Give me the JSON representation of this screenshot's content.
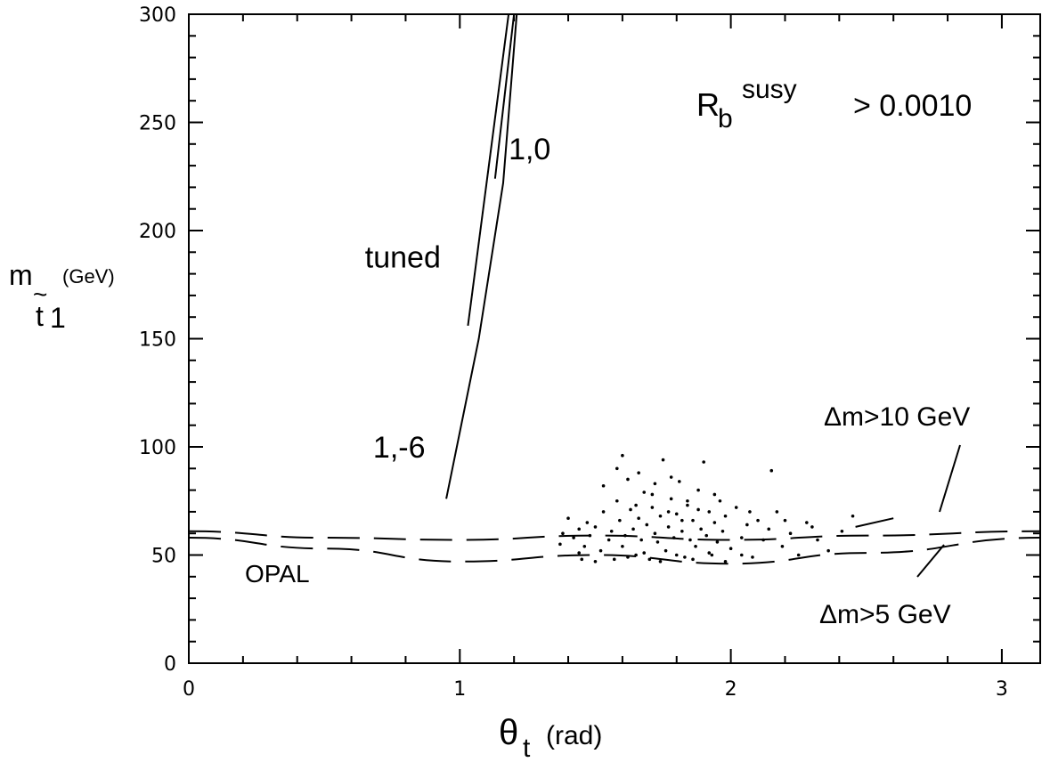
{
  "chart_data": {
    "type": "scatter",
    "title": "",
    "xlabel": {
      "main": "θ",
      "sub": "t",
      "unit": "(rad)"
    },
    "ylabel": {
      "main": "m",
      "tilde": "~",
      "sub": "t",
      "subsub": "1",
      "unit": "(GeV)"
    },
    "xlim": [
      0,
      3.1416
    ],
    "ylim": [
      0,
      300
    ],
    "x_ticks": [
      0,
      1,
      2,
      3
    ],
    "y_ticks": [
      0,
      50,
      100,
      150,
      200,
      250,
      300
    ],
    "x_tick_labels": [
      "0",
      "1",
      "2",
      "3"
    ],
    "y_tick_labels": [
      "0",
      "50",
      "100",
      "150",
      "200",
      "250",
      "300"
    ],
    "grid": false,
    "series": [
      {
        "kind": "line",
        "style": "solid",
        "points": [
          [
            0.95,
            76
          ],
          [
            1.07,
            150
          ],
          [
            1.16,
            222
          ],
          [
            1.21,
            300
          ]
        ]
      },
      {
        "kind": "line",
        "style": "solid",
        "points": [
          [
            1.03,
            156
          ],
          [
            1.18,
            300
          ]
        ]
      },
      {
        "kind": "line",
        "style": "solid",
        "points": [
          [
            1.13,
            224
          ],
          [
            1.2,
            300
          ]
        ]
      },
      {
        "kind": "line",
        "style": "dashed",
        "points": [
          [
            0,
            61
          ],
          [
            0.5,
            58
          ],
          [
            1.0,
            57
          ],
          [
            1.5,
            59
          ],
          [
            2.0,
            57
          ],
          [
            2.5,
            59
          ],
          [
            3.14,
            61
          ]
        ]
      },
      {
        "kind": "line",
        "style": "dashed",
        "points": [
          [
            0,
            58
          ],
          [
            0.5,
            53
          ],
          [
            1.0,
            47
          ],
          [
            1.5,
            50
          ],
          [
            2.0,
            46
          ],
          [
            2.5,
            51
          ],
          [
            3.14,
            58
          ]
        ]
      },
      {
        "kind": "line",
        "style": "solid",
        "points": [
          [
            2.46,
            63
          ],
          [
            2.6,
            67
          ]
        ]
      },
      {
        "kind": "scatter",
        "points": [
          [
            1.37,
            55
          ],
          [
            1.4,
            67
          ],
          [
            1.42,
            58
          ],
          [
            1.44,
            62
          ],
          [
            1.45,
            48
          ],
          [
            1.46,
            54
          ],
          [
            1.48,
            59
          ],
          [
            1.5,
            63
          ],
          [
            1.52,
            52
          ],
          [
            1.53,
            70
          ],
          [
            1.55,
            57
          ],
          [
            1.56,
            61
          ],
          [
            1.57,
            48
          ],
          [
            1.58,
            75
          ],
          [
            1.59,
            66
          ],
          [
            1.6,
            54
          ],
          [
            1.61,
            59
          ],
          [
            1.62,
            85
          ],
          [
            1.63,
            71
          ],
          [
            1.64,
            62
          ],
          [
            1.65,
            50
          ],
          [
            1.66,
            67
          ],
          [
            1.67,
            57
          ],
          [
            1.68,
            79
          ],
          [
            1.69,
            64
          ],
          [
            1.7,
            48
          ],
          [
            1.71,
            72
          ],
          [
            1.72,
            60
          ],
          [
            1.73,
            56
          ],
          [
            1.74,
            68
          ],
          [
            1.75,
            94
          ],
          [
            1.76,
            52
          ],
          [
            1.77,
            63
          ],
          [
            1.78,
            76
          ],
          [
            1.79,
            58
          ],
          [
            1.8,
            69
          ],
          [
            1.81,
            84
          ],
          [
            1.82,
            61
          ],
          [
            1.83,
            49
          ],
          [
            1.84,
            73
          ],
          [
            1.85,
            57
          ],
          [
            1.86,
            66
          ],
          [
            1.87,
            54
          ],
          [
            1.88,
            80
          ],
          [
            1.89,
            62
          ],
          [
            1.9,
            93
          ],
          [
            1.91,
            59
          ],
          [
            1.92,
            70
          ],
          [
            1.93,
            50
          ],
          [
            1.94,
            65
          ],
          [
            1.95,
            56
          ],
          [
            1.96,
            75
          ],
          [
            1.97,
            61
          ],
          [
            1.98,
            68
          ],
          [
            2.0,
            53
          ],
          [
            2.02,
            72
          ],
          [
            2.04,
            58
          ],
          [
            2.06,
            64
          ],
          [
            2.08,
            49
          ],
          [
            2.1,
            66
          ],
          [
            2.12,
            57
          ],
          [
            2.14,
            62
          ],
          [
            2.15,
            89
          ],
          [
            2.17,
            70
          ],
          [
            2.19,
            54
          ],
          [
            2.22,
            60
          ],
          [
            2.25,
            50
          ],
          [
            2.28,
            65
          ],
          [
            2.32,
            57
          ],
          [
            2.36,
            52
          ],
          [
            2.41,
            61
          ],
          [
            2.45,
            68
          ],
          [
            1.47,
            65
          ],
          [
            1.53,
            82
          ],
          [
            1.58,
            90
          ],
          [
            1.6,
            96
          ],
          [
            1.66,
            88
          ],
          [
            1.71,
            78
          ],
          [
            1.78,
            86
          ],
          [
            1.84,
            75
          ],
          [
            1.62,
            49
          ],
          [
            1.68,
            51
          ],
          [
            1.74,
            47
          ],
          [
            1.8,
            50
          ],
          [
            1.86,
            48
          ],
          [
            1.92,
            51
          ],
          [
            1.98,
            47
          ],
          [
            2.04,
            50
          ],
          [
            1.5,
            47
          ],
          [
            1.44,
            51
          ],
          [
            1.38,
            60
          ],
          [
            1.65,
            73
          ],
          [
            1.72,
            83
          ],
          [
            1.77,
            70
          ],
          [
            1.82,
            66
          ],
          [
            1.88,
            71
          ],
          [
            1.94,
            78
          ],
          [
            2.07,
            70
          ],
          [
            2.2,
            66
          ],
          [
            2.3,
            63
          ]
        ]
      }
    ],
    "annotations": [
      {
        "text": "tuned",
        "x": 0.65,
        "y": 183
      },
      {
        "text": "1,0",
        "x": 1.18,
        "y": 233
      },
      {
        "text": "1,-6",
        "x": 0.68,
        "y": 95
      }
    ],
    "labels": {
      "rb_main": "R",
      "rb_sub": "b",
      "rb_sup": "susy",
      "rb_cond": "> 0.0010",
      "opal": "OPAL",
      "dm10": "Δm>10 GeV",
      "dm5": "Δm>5 GeV"
    }
  }
}
